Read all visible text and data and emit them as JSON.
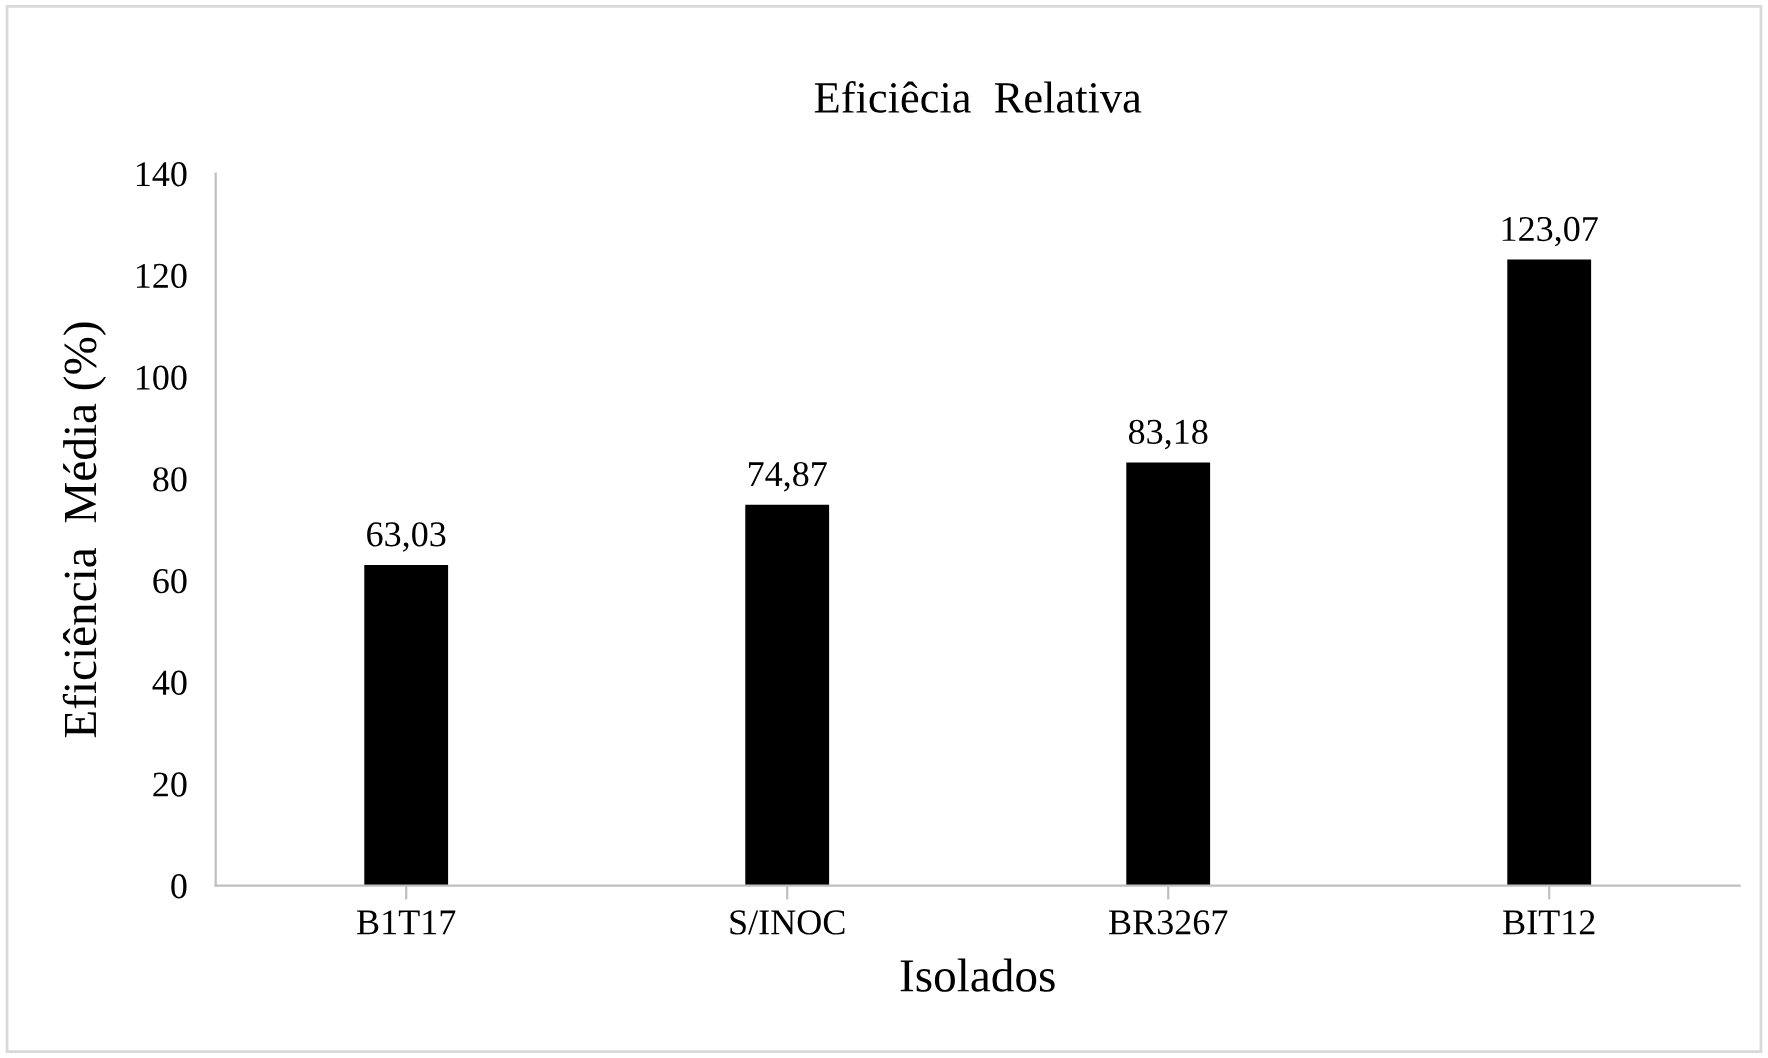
{
  "chart_data": {
    "type": "bar",
    "title": "Eficiêcia  Relativa",
    "xlabel": "Isolados",
    "ylabel": "Eficiência  Média (%)",
    "categories": [
      "B1T17",
      "S/INOC",
      "BR3267",
      "BIT12"
    ],
    "values": [
      63.03,
      74.87,
      83.18,
      123.07
    ],
    "value_labels": [
      "63,03",
      "74,87",
      "83,18",
      "123,07"
    ],
    "color": "#000000",
    "ylim": [
      0,
      140
    ],
    "yticks": [
      0,
      20,
      40,
      60,
      80,
      100,
      120,
      140
    ],
    "grid": false,
    "legend": false
  }
}
